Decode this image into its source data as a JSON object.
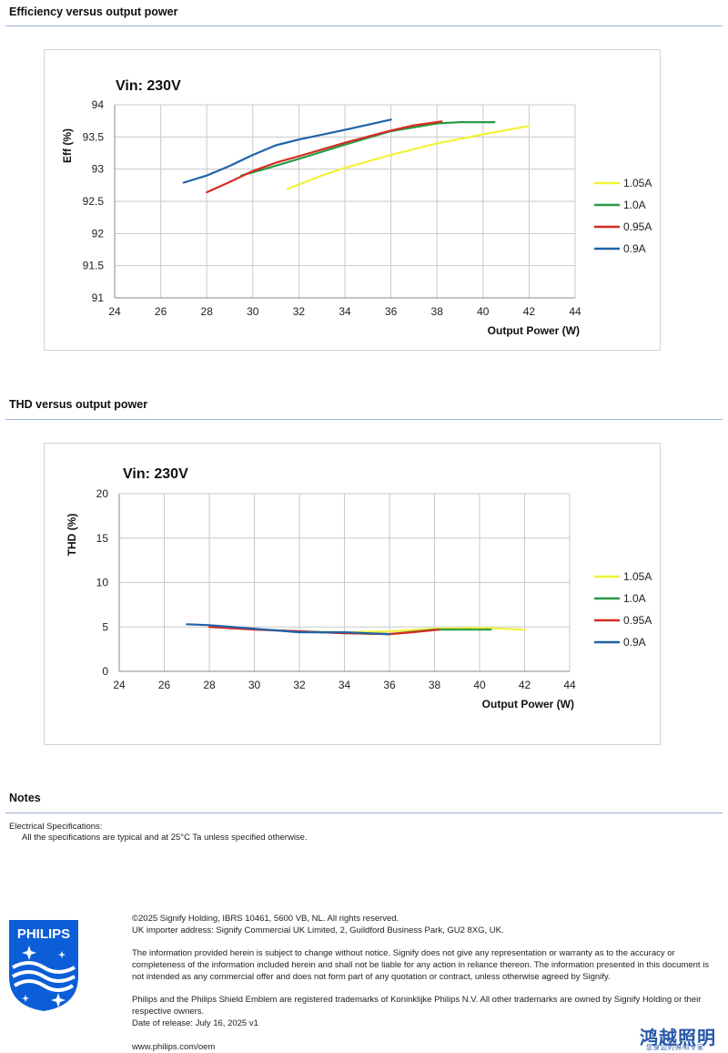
{
  "sections": {
    "efficiency_title": "Efficiency versus output power",
    "thd_title": "THD versus output power",
    "notes_title": "Notes"
  },
  "notes": {
    "heading": "Electrical Specifications:",
    "text": "All the specifications are typical and at 25°C Ta unless specified otherwise."
  },
  "footer": {
    "copyright": "©2025 Signify Holding, IBRS 10461, 5600 VB, NL. All rights reserved.",
    "importer": "UK importer address: Signify Commercial UK Limited, 2, Guildford Business Park, GU2 8XG, UK.",
    "disclaimer": "The information provided herein is subject to change without notice. Signify does not give any representation or warranty as to the accuracy or completeness of the information included herein and shall not be liable for any action in reliance thereon. The information presented in this document is not intended as any commercial offer and does not form part of any quotation or contract, unless otherwise agreed by Signify.",
    "trademarks": "Philips and the Philips Shield Emblem are registered trademarks of Koninklijke Philips N.V. All other trademarks are owned by Signify Holding or their respective owners.",
    "release": "Date of release: July 16, 2025 v1",
    "url": "www.philips.com/oem"
  },
  "logo": {
    "text": "PHILIPS",
    "color": "#0b5ed7"
  },
  "watermark": {
    "text": "鸿越照明",
    "sub": "您身边的照明专家",
    "color": "#2457a7"
  },
  "chart_data": [
    {
      "type": "line",
      "title": "Vin: 230V",
      "xlabel": "Output Power (W)",
      "ylabel": "Eff  (%)",
      "xlim": [
        24,
        44
      ],
      "ylim": [
        91,
        94
      ],
      "xticks": [
        "24",
        "26",
        "28",
        "30",
        "32",
        "34",
        "36",
        "38",
        "40",
        "42",
        "44"
      ],
      "yticks": [
        "91",
        "91.5",
        "92",
        "92.5",
        "93",
        "93.5",
        "94"
      ],
      "grid": true,
      "legend_position": "right",
      "series": [
        {
          "name": "1.05A",
          "color": "#f2f23a",
          "x": [
            31.5,
            33,
            34,
            36,
            38,
            40,
            42
          ],
          "y": [
            92.69,
            92.9,
            93.02,
            93.22,
            93.4,
            93.54,
            93.67
          ]
        },
        {
          "name": "1.0A",
          "color": "#2a9a46",
          "x": [
            29.5,
            30.5,
            32,
            34,
            36,
            38,
            39,
            40.5
          ],
          "y": [
            92.9,
            93.0,
            93.16,
            93.38,
            93.59,
            93.71,
            93.73,
            93.73
          ]
        },
        {
          "name": "0.95A",
          "color": "#d62b20",
          "x": [
            28,
            29,
            30,
            31,
            32,
            34,
            36,
            37,
            38.2
          ],
          "y": [
            92.64,
            92.8,
            92.97,
            93.1,
            93.2,
            93.41,
            93.6,
            93.68,
            93.74
          ]
        },
        {
          "name": "0.9A",
          "color": "#2063a8",
          "x": [
            27,
            28,
            29,
            30,
            31,
            32,
            34,
            36
          ],
          "y": [
            92.79,
            92.9,
            93.05,
            93.22,
            93.37,
            93.46,
            93.61,
            93.77
          ]
        }
      ]
    },
    {
      "type": "line",
      "title": "Vin: 230V",
      "xlabel": "Output Power (W)",
      "ylabel": "THD  (%)",
      "xlim": [
        24,
        44
      ],
      "ylim": [
        0,
        20
      ],
      "xticks": [
        "24",
        "26",
        "28",
        "30",
        "32",
        "34",
        "36",
        "38",
        "40",
        "42",
        "44"
      ],
      "yticks": [
        "0",
        "5",
        "10",
        "15",
        "20"
      ],
      "grid": true,
      "legend_position": "right",
      "series": [
        {
          "name": "1.05A",
          "color": "#f2f23a",
          "x": [
            31.5,
            34,
            36,
            38,
            40,
            42
          ],
          "y": [
            4.5,
            4.4,
            4.5,
            4.8,
            4.9,
            4.7
          ]
        },
        {
          "name": "1.0A",
          "color": "#2a9a46",
          "x": [
            29.5,
            32,
            34,
            36,
            38,
            40.5
          ],
          "y": [
            4.8,
            4.5,
            4.3,
            4.2,
            4.7,
            4.7
          ]
        },
        {
          "name": "0.95A",
          "color": "#d62b20",
          "x": [
            28,
            30,
            32,
            34,
            36,
            37,
            38.2
          ],
          "y": [
            5.0,
            4.7,
            4.5,
            4.3,
            4.2,
            4.4,
            4.7
          ]
        },
        {
          "name": "0.9A",
          "color": "#2063a8",
          "x": [
            27,
            28,
            30,
            32,
            34,
            36
          ],
          "y": [
            5.3,
            5.2,
            4.8,
            4.4,
            4.4,
            4.2
          ]
        }
      ]
    }
  ]
}
